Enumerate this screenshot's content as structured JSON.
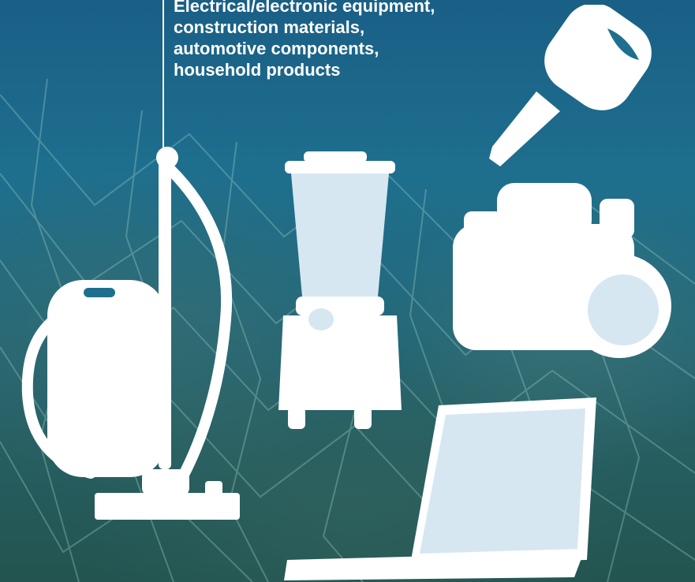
{
  "caption": {
    "lines": [
      "Electrical/electronic equipment,",
      "construction materials,",
      "automotive components,",
      "household products"
    ]
  },
  "colors": {
    "silhouette": "#ffffff",
    "accent_fill": "#d6e7f2",
    "water_top": "#1a5f86",
    "water_bottom": "#23544f"
  },
  "icons": [
    "car-key-icon",
    "vacuum-cleaner-icon",
    "blender-icon",
    "camera-icon",
    "laptop-icon"
  ]
}
